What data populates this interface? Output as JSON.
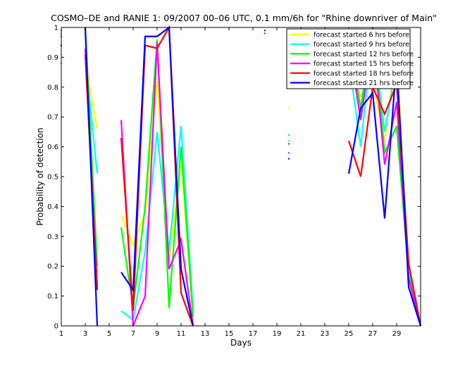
{
  "chart_data": {
    "type": "line",
    "title": "COSMO–DE and RANIE 1: 09/2007 00–06 UTC, 0.1 mm/6h for \"Rhine downriver of Main\"",
    "xlabel": "Days",
    "ylabel": "Probability of detection",
    "xlim": [
      1,
      31
    ],
    "ylim": [
      0,
      1
    ],
    "x_ticks": [
      1,
      3,
      5,
      7,
      9,
      11,
      13,
      15,
      17,
      19,
      21,
      23,
      25,
      27,
      29
    ],
    "y_ticks": [
      0,
      0.1,
      0.2,
      0.3,
      0.4,
      0.5,
      0.6,
      0.7,
      0.8,
      0.9,
      1
    ],
    "y_tick_labels": [
      "0",
      "0.1",
      "0.2",
      "0.3",
      "0.4",
      "0.5",
      "0.6",
      "0.7",
      "0.8",
      "0.9",
      "1"
    ],
    "legend_position": "top-right",
    "grid": false,
    "series": [
      {
        "name": "forecast started 6 hrs before",
        "color": "#ffff00",
        "values": [
          0.91,
          null,
          0.88,
          0.66,
          null,
          0.37,
          0.27,
          0.38,
          0.82,
          0.22,
          0.55,
          0.03,
          null,
          null,
          null,
          null,
          null,
          0.99,
          null,
          0.73,
          null,
          null,
          null,
          null,
          0.86,
          0.77,
          0.82,
          0.62,
          0.93,
          0.2,
          0.0
        ]
      },
      {
        "name": "forecast started 9 hrs before",
        "color": "#00ffff",
        "values": [
          0.98,
          null,
          0.9,
          0.51,
          null,
          0.05,
          0.02,
          0.25,
          0.65,
          0.25,
          0.67,
          0.05,
          null,
          null,
          null,
          null,
          null,
          0.99,
          null,
          0.62,
          null,
          null,
          null,
          null,
          0.89,
          0.6,
          0.98,
          0.65,
          0.88,
          0.19,
          0.0
        ]
      },
      {
        "name": "forecast started 12 hrs before",
        "color": "#00ff00",
        "values": [
          0.88,
          null,
          1.0,
          0.2,
          null,
          0.33,
          0.06,
          0.4,
          0.96,
          0.06,
          0.6,
          0.03,
          null,
          null,
          null,
          null,
          null,
          0.98,
          null,
          0.64,
          null,
          null,
          null,
          null,
          0.96,
          0.73,
          1.0,
          0.58,
          0.67,
          0.17,
          0.0
        ]
      },
      {
        "name": "forecast started 15 hrs before",
        "color": "#ff00ff",
        "values": [
          0.99,
          null,
          0.93,
          0.13,
          null,
          0.69,
          0.0,
          0.1,
          0.95,
          0.19,
          0.29,
          0.0,
          null,
          null,
          null,
          null,
          null,
          0.98,
          null,
          0.58,
          null,
          null,
          null,
          null,
          0.95,
          0.69,
          0.97,
          0.54,
          0.75,
          0.16,
          0.0
        ]
      },
      {
        "name": "forecast started 18 hrs before",
        "color": "#ff0000",
        "values": [
          0.97,
          null,
          0.91,
          0.12,
          null,
          0.63,
          0.05,
          0.94,
          0.93,
          1.0,
          0.11,
          0.0,
          null,
          null,
          null,
          null,
          null,
          0.98,
          null,
          0.61,
          null,
          null,
          null,
          null,
          0.62,
          0.5,
          0.8,
          0.71,
          0.81,
          0.21,
          0.0
        ]
      },
      {
        "name": "forecast started 21 hrs before",
        "color": "#0000ff",
        "values": [
          0.94,
          null,
          1.0,
          0.0,
          null,
          0.18,
          0.12,
          0.97,
          0.97,
          1.0,
          0.19,
          0.0,
          null,
          null,
          null,
          null,
          null,
          0.99,
          null,
          0.56,
          null,
          null,
          null,
          null,
          0.51,
          0.73,
          0.78,
          0.36,
          0.89,
          0.13,
          0.0
        ]
      }
    ]
  }
}
